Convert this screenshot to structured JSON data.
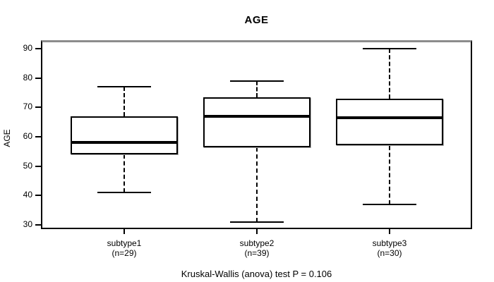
{
  "figure": {
    "title": "AGE",
    "y_axis_label": "AGE",
    "caption": "Kruskal-Wallis (anova) test P = 0.106"
  },
  "chart_data": {
    "type": "boxplot",
    "title": "AGE",
    "xlabel": "",
    "ylabel": "AGE",
    "ylim": [
      28.5,
      93
    ],
    "yticks": [
      30,
      40,
      50,
      60,
      70,
      80,
      90
    ],
    "grid": false,
    "legend": "none",
    "annotation": "Kruskal-Wallis (anova) test P = 0.106",
    "groups": [
      {
        "label": "subtype1",
        "sublabel": "(n=29)",
        "n": 29,
        "whisker_low": 41,
        "q1": 54,
        "median": 58,
        "q3": 67,
        "whisker_high": 77
      },
      {
        "label": "subtype2",
        "sublabel": "(n=39)",
        "n": 39,
        "whisker_low": 31,
        "q1": 56.5,
        "median": 67,
        "q3": 73.5,
        "whisker_high": 79
      },
      {
        "label": "subtype3",
        "sublabel": "(n=30)",
        "n": 30,
        "whisker_low": 37,
        "q1": 57,
        "median": 66.5,
        "q3": 73,
        "whisker_high": 90
      }
    ]
  },
  "colors": {
    "line": "#000000",
    "frame_top": "#8c8c8c",
    "box_fill": "#ffffff",
    "background": "#ffffff",
    "text": "#000000"
  }
}
